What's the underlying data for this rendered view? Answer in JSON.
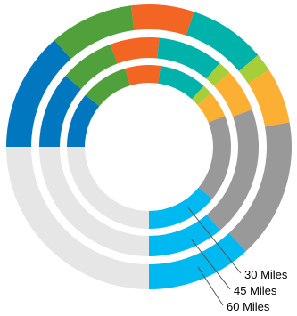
{
  "chart_data": {
    "type": "pie",
    "variant": "nested-radial-rings",
    "total_sweep_degrees": 270,
    "start_angle_degrees": 270,
    "base_track_color": "#e6e6e6",
    "segment_colors": [
      "#0077be",
      "#50a03c",
      "#f26522",
      "#00b2a9",
      "#a6ce39",
      "#fbb034",
      "#999999",
      "#00b9f1"
    ],
    "rings": [
      {
        "label": "60 Miles",
        "values": [
          8.5,
          6,
          4.5,
          5.5,
          1.3,
          4,
          10,
          7.5
        ]
      },
      {
        "label": "45 Miles",
        "values": [
          7,
          5,
          4.5,
          6,
          1.2,
          4,
          12,
          7
        ]
      },
      {
        "label": "30 Miles",
        "values": [
          7,
          6,
          4.5,
          6,
          1.3,
          3.3,
          11,
          9
        ]
      }
    ]
  }
}
